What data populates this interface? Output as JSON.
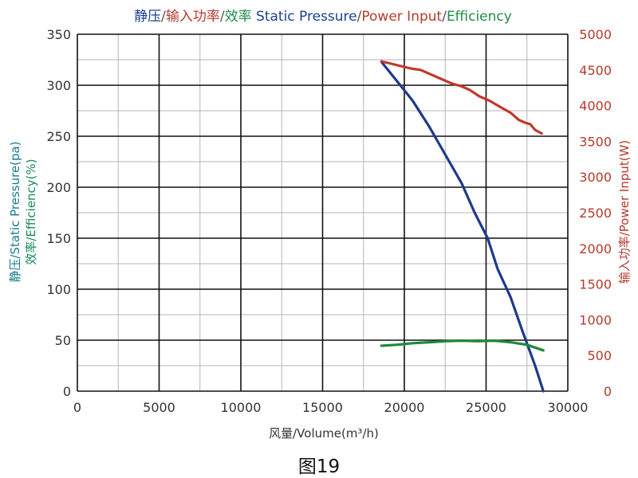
{
  "chart_data": {
    "type": "line",
    "title_parts": [
      {
        "text": "静压",
        "color": "#1e3f8f"
      },
      {
        "text": "/",
        "color": "#555555"
      },
      {
        "text": "输入功率",
        "color": "#b53a2c"
      },
      {
        "text": "/",
        "color": "#555555"
      },
      {
        "text": "效率  ",
        "color": "#1f8a4a"
      },
      {
        "text": "Static Pressure",
        "color": "#1e3f8f"
      },
      {
        "text": "/",
        "color": "#555555"
      },
      {
        "text": "Power Input",
        "color": "#b53a2c"
      },
      {
        "text": "/",
        "color": "#555555"
      },
      {
        "text": "Efficiency",
        "color": "#1f8a4a"
      }
    ],
    "xlabel": "风量/Volume(m³/h)",
    "ylabel_left_line1": "静压/Static Pressure(pa)",
    "ylabel_left_line2": "效率/Efficiency(%)",
    "ylabel_right": "输入功率/Power Input(W)",
    "xlim": [
      0,
      30000
    ],
    "ylim_left": [
      0,
      350
    ],
    "ylim_right": [
      0,
      5000
    ],
    "x_ticks": [
      0,
      5000,
      10000,
      15000,
      20000,
      25000,
      30000
    ],
    "y_left_ticks": [
      0,
      50,
      100,
      150,
      200,
      250,
      300,
      350
    ],
    "y_right_ticks": [
      0,
      500,
      1000,
      1500,
      2000,
      2500,
      3000,
      3500,
      4000,
      4500,
      5000
    ],
    "grid": true,
    "colors": {
      "pressure": "#1e3a8a",
      "power": "#c0392b",
      "efficiency": "#1e8a3a",
      "left_axis": "#1a7a8a",
      "right_axis": "#b53a2c",
      "grid": "#000000"
    },
    "series": [
      {
        "key": "pressure",
        "axis": "left",
        "x": [
          18600,
          19500,
          20500,
          21500,
          22500,
          23500,
          24300,
          25100,
          25700,
          26500,
          27200,
          28000,
          28500
        ],
        "values": [
          323,
          305,
          285,
          260,
          232,
          204,
          175,
          150,
          120,
          92,
          60,
          25,
          0
        ]
      },
      {
        "key": "power",
        "axis": "right",
        "x": [
          18600,
          19500,
          20400,
          21000,
          21600,
          22200,
          22900,
          23500,
          24000,
          24600,
          25200,
          25800,
          26500,
          27000,
          27400,
          27700,
          28000,
          28400
        ],
        "values": [
          4620,
          4570,
          4520,
          4500,
          4440,
          4380,
          4310,
          4270,
          4220,
          4130,
          4070,
          3990,
          3900,
          3800,
          3760,
          3740,
          3660,
          3610
        ]
      },
      {
        "key": "efficiency",
        "axis": "left",
        "x": [
          18600,
          19500,
          20500,
          21500,
          22500,
          23500,
          24500,
          25500,
          26500,
          27500,
          28500
        ],
        "values": [
          44.5,
          45.5,
          47,
          48,
          49,
          49.5,
          49,
          49.5,
          48,
          45.5,
          40
        ]
      }
    ]
  },
  "caption": "图19"
}
